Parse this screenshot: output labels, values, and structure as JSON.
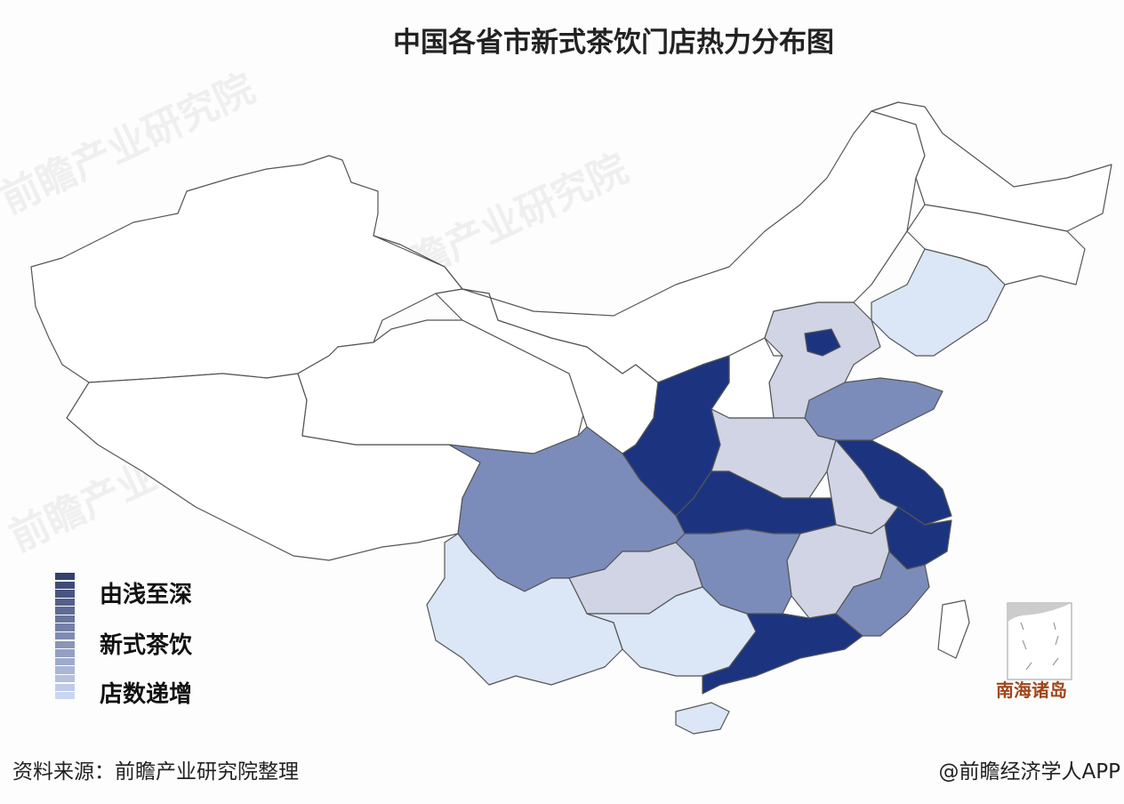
{
  "title": "中国各省市新式茶饮门店热力分布图",
  "legend": {
    "lines": [
      "由浅至深",
      "新式茶饮",
      "店数递增"
    ],
    "gradient_from": "#c9d6f2",
    "gradient_to": "#34406e",
    "steps": 15
  },
  "colors": {
    "level_0": "#ffffff",
    "level_1": "#dbe6f6",
    "level_2": "#d0d4e4",
    "level_3": "#7b8cba",
    "level_4": "#1c3480",
    "border": "#555555"
  },
  "provinces": [
    {
      "name": "新疆",
      "level": 0
    },
    {
      "name": "西藏",
      "level": 0
    },
    {
      "name": "青海",
      "level": 0
    },
    {
      "name": "甘肃",
      "level": 0
    },
    {
      "name": "内蒙古",
      "level": 0
    },
    {
      "name": "黑龙江",
      "level": 0
    },
    {
      "name": "吉林",
      "level": 0
    },
    {
      "name": "辽宁",
      "level": 1
    },
    {
      "name": "河北",
      "level": 2
    },
    {
      "name": "北京",
      "level": 4
    },
    {
      "name": "山西",
      "level": 0
    },
    {
      "name": "陕西",
      "level": 4
    },
    {
      "name": "山东",
      "level": 3
    },
    {
      "name": "河南",
      "level": 2
    },
    {
      "name": "江苏",
      "level": 4
    },
    {
      "name": "安徽",
      "level": 2
    },
    {
      "name": "湖北",
      "level": 4
    },
    {
      "name": "四川",
      "level": 3
    },
    {
      "name": "浙江",
      "level": 4
    },
    {
      "name": "江西",
      "level": 2
    },
    {
      "name": "湖南",
      "level": 3
    },
    {
      "name": "福建",
      "level": 3
    },
    {
      "name": "贵州",
      "level": 2
    },
    {
      "name": "云南",
      "level": 1
    },
    {
      "name": "广西",
      "level": 1
    },
    {
      "name": "广东",
      "level": 4
    },
    {
      "name": "海南",
      "level": 1
    },
    {
      "name": "台湾",
      "level": 0
    }
  ],
  "inset_label": "南海诸岛",
  "watermark": "前瞻产业研究院",
  "footer": {
    "source": "资料来源：前瞻产业研究院整理",
    "credit": "@前瞻经济学人APP"
  }
}
